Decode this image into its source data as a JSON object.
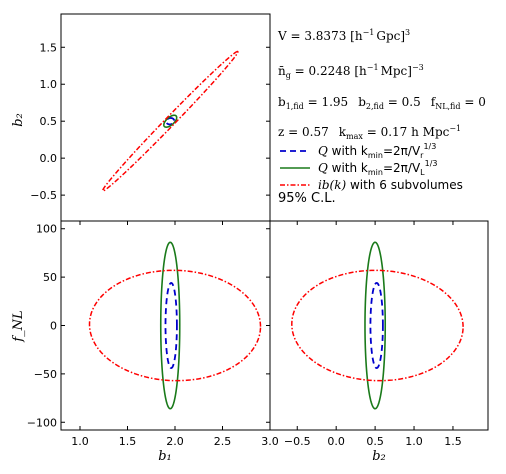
{
  "chart_data": [
    {
      "type": "line",
      "panel": "b1-b2",
      "xlim": [
        0.8,
        3.0
      ],
      "ylim": [
        -0.85,
        1.95
      ],
      "xticks": [],
      "yticks": [
        "−0.5",
        "0.0",
        "0.5",
        "1.0",
        "1.5"
      ],
      "ytick_values": [
        -0.5,
        0.0,
        0.5,
        1.0,
        1.5
      ],
      "xlabel": "",
      "ylabel": "b₂",
      "series": [
        {
          "name": "Q with k_min=2π/V_r^(1/3)",
          "style": "dashed",
          "color": "#0000cc",
          "center": [
            1.95,
            0.5
          ],
          "half_axes": [
            0.045,
            0.04
          ],
          "tilt_deg": 53
        },
        {
          "name": "Q with k_min=2π/V_L^(1/3)",
          "style": "solid",
          "color": "#1a7a1a",
          "center": [
            1.95,
            0.5
          ],
          "half_axes": [
            0.095,
            0.045
          ],
          "tilt_deg": 53
        },
        {
          "name": "ib(k) with 6 subvolumes",
          "style": "dashdot",
          "color": "#ff0000",
          "center": [
            1.95,
            0.5
          ],
          "half_axes": [
            1.18,
            0.055
          ],
          "tilt_deg": 53
        }
      ]
    },
    {
      "type": "line",
      "panel": "b1-fNL",
      "xlim": [
        0.8,
        3.0
      ],
      "ylim": [
        -108,
        108
      ],
      "xticks": [
        "1.0",
        "1.5",
        "2.0",
        "2.5",
        "3.0"
      ],
      "xtick_values": [
        1.0,
        1.5,
        2.0,
        2.5,
        3.0
      ],
      "yticks": [
        "−100",
        "−50",
        "0",
        "50",
        "100"
      ],
      "ytick_values": [
        -100,
        -50,
        0,
        50,
        100
      ],
      "xlabel": "b₁",
      "ylabel": "f_NL",
      "series": [
        {
          "name": "Q with k_min=2π/V_r^(1/3)",
          "style": "dashed",
          "color": "#0000cc",
          "center": [
            1.96,
            0
          ],
          "half_axes": [
            0.06,
            44
          ],
          "tilt_deg": 0
        },
        {
          "name": "Q with k_min=2π/V_L^(1/3)",
          "style": "solid",
          "color": "#1a7a1a",
          "center": [
            1.95,
            0
          ],
          "half_axes": [
            0.1,
            86
          ],
          "tilt_deg": 0
        },
        {
          "name": "ib(k) with 6 subvolumes",
          "style": "dashdot",
          "color": "#ff0000",
          "center": [
            2.0,
            0
          ],
          "half_axes": [
            0.9,
            57
          ],
          "tilt_deg": -3
        }
      ]
    },
    {
      "type": "line",
      "panel": "b2-fNL",
      "xlim": [
        -0.85,
        1.95
      ],
      "ylim": [
        -108,
        108
      ],
      "xticks": [
        "−0.5",
        "0.0",
        "0.5",
        "1.0",
        "1.5"
      ],
      "xtick_values": [
        -0.5,
        0.0,
        0.5,
        1.0,
        1.5
      ],
      "yticks": [],
      "xlabel": "b₂",
      "ylabel": "",
      "series": [
        {
          "name": "Q with k_min=2π/V_r^(1/3)",
          "style": "dashed",
          "color": "#0000cc",
          "center": [
            0.52,
            0
          ],
          "half_axes": [
            0.08,
            44
          ],
          "tilt_deg": 0
        },
        {
          "name": "Q with k_min=2π/V_L^(1/3)",
          "style": "solid",
          "color": "#1a7a1a",
          "center": [
            0.5,
            0
          ],
          "half_axes": [
            0.13,
            86
          ],
          "tilt_deg": 0
        },
        {
          "name": "ib(k) with 6 subvolumes",
          "style": "dashdot",
          "color": "#ff0000",
          "center": [
            0.53,
            0
          ],
          "half_axes": [
            1.1,
            57
          ],
          "tilt_deg": -3
        }
      ]
    }
  ],
  "info": {
    "line1_lhs": "V = 3.8373 [h",
    "line1_exp": "−1",
    "line1_rhs": "Gpc]",
    "line1_pow": "3",
    "line2_lhs": "n̄",
    "line2_sub": "g",
    "line2_mid": " = 0.2248 [h",
    "line2_exp": "−1",
    "line2_rhs": "Mpc]",
    "line2_pow": "−3",
    "line3_a": "b",
    "line3_a_sub": "1,fid",
    "line3_a_val": " = 1.95",
    "line3_b": "b",
    "line3_b_sub": "2,fid",
    "line3_b_val": " = 0.5",
    "line3_c": "f",
    "line3_c_sub": "NL,fid",
    "line3_c_val": " = 0",
    "line4_a": "z = 0.57",
    "line4_b": "k",
    "line4_b_sub": "max",
    "line4_b_val": " = 0.17 h Mpc",
    "line4_b_pow": "−1"
  },
  "legend": [
    {
      "pre": "Q",
      "mid": " with k",
      "sub": "min",
      "post": "=2π/V",
      "vsub": "r",
      "pow": "1/3",
      "style": "dashed",
      "color": "#0000cc"
    },
    {
      "pre": "Q",
      "mid": " with k",
      "sub": "min",
      "post": "=2π/V",
      "vsub": "L",
      "pow": "1/3",
      "style": "solid",
      "color": "#1a7a1a"
    },
    {
      "pre": "ib(k)",
      "mid": " with 6 subvolumes",
      "sub": "",
      "post": "",
      "vsub": "",
      "pow": "",
      "style": "dashdot",
      "color": "#ff0000"
    }
  ],
  "confidence_label": "95% C.L."
}
